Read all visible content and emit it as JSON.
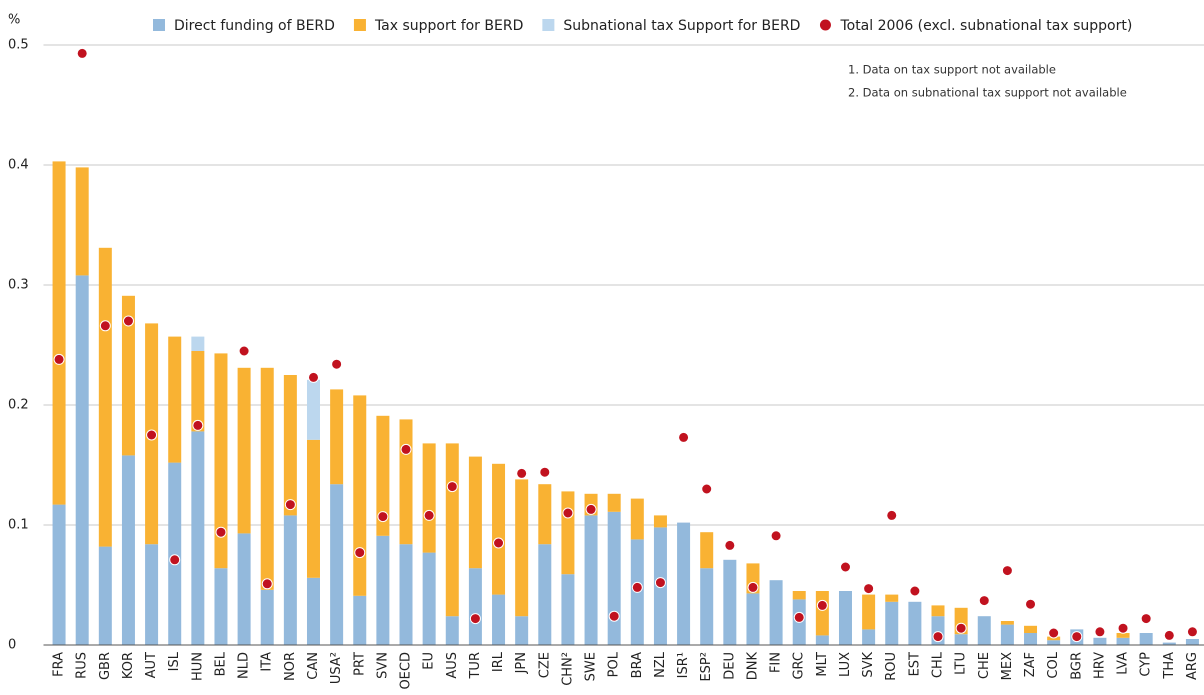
{
  "chart_data": {
    "type": "bar",
    "stacked": true,
    "grid": true,
    "y_label": "%",
    "notes": [
      "1. Data on tax support not available",
      "2. Data on subnational tax support not available"
    ],
    "categories": [
      "FRA",
      "RUS",
      "GBR",
      "KOR",
      "AUT",
      "ISL",
      "HUN",
      "BEL",
      "NLD",
      "ITA",
      "NOR",
      "CAN",
      "USA²",
      "PRT",
      "SVN",
      "OECD",
      "EU",
      "AUS",
      "TUR",
      "IRL",
      "JPN",
      "CZE",
      "CHN²",
      "SWE",
      "POL",
      "BRA",
      "NZL",
      "ISR¹",
      "ESP²",
      "DEU",
      "DNK",
      "FIN",
      "GRC",
      "MLT",
      "LUX",
      "SVK",
      "ROU",
      "EST",
      "CHL",
      "LTU",
      "CHE",
      "MEX",
      "ZAF",
      "COL",
      "BGR",
      "HRV",
      "LVA",
      "CYP",
      "THA",
      "ARG"
    ],
    "ylim": [
      0,
      0.5
    ],
    "yticks": [
      0,
      0.1,
      0.2,
      0.3,
      0.4,
      0.5
    ],
    "series": [
      {
        "name": "Direct funding of BERD",
        "color": "#93b9dc",
        "type": "bar",
        "values": [
          0.117,
          0.308,
          0.082,
          0.158,
          0.084,
          0.152,
          0.178,
          0.064,
          0.093,
          0.046,
          0.108,
          0.056,
          0.134,
          0.041,
          0.091,
          0.084,
          0.077,
          0.024,
          0.064,
          0.042,
          0.024,
          0.084,
          0.059,
          0.108,
          0.111,
          0.088,
          0.098,
          0.102,
          0.064,
          0.071,
          0.043,
          0.054,
          0.038,
          0.008,
          0.045,
          0.013,
          0.036,
          0.036,
          0.024,
          0.009,
          0.024,
          0.017,
          0.01,
          0.004,
          0.013,
          0.006,
          0.006,
          0.01,
          0.002,
          0.005
        ]
      },
      {
        "name": "Tax support for BERD",
        "color": "#f9b233",
        "type": "bar",
        "values": [
          0.286,
          0.09,
          0.249,
          0.133,
          0.184,
          0.105,
          0.067,
          0.179,
          0.138,
          0.185,
          0.117,
          0.115,
          0.079,
          0.167,
          0.1,
          0.104,
          0.091,
          0.144,
          0.093,
          0.109,
          0.114,
          0.05,
          0.069,
          0.018,
          0.015,
          0.034,
          0.01,
          null,
          0.03,
          null,
          0.025,
          null,
          0.007,
          0.037,
          null,
          0.029,
          0.006,
          null,
          0.009,
          0.022,
          null,
          0.003,
          0.006,
          0.003,
          null,
          null,
          0.004,
          null,
          null,
          null
        ]
      },
      {
        "name": "Subnational tax Support for BERD",
        "color": "#bcd7ee",
        "type": "bar",
        "values": [
          null,
          null,
          null,
          null,
          null,
          null,
          0.012,
          null,
          null,
          null,
          null,
          0.05,
          null,
          null,
          null,
          null,
          null,
          null,
          null,
          null,
          null,
          null,
          null,
          null,
          null,
          null,
          null,
          null,
          null,
          null,
          null,
          null,
          null,
          null,
          null,
          null,
          null,
          null,
          null,
          null,
          null,
          null,
          null,
          null,
          null,
          null,
          null,
          null,
          null,
          null
        ]
      },
      {
        "name": "Total 2006 (excl. subnational tax support)",
        "color": "#c1121f",
        "type": "scatter",
        "values": [
          0.238,
          0.493,
          0.266,
          0.27,
          0.175,
          0.071,
          0.183,
          0.094,
          0.245,
          0.051,
          0.117,
          0.223,
          0.234,
          0.077,
          0.107,
          0.163,
          0.108,
          0.132,
          0.022,
          0.085,
          0.143,
          0.144,
          0.11,
          0.113,
          0.024,
          0.048,
          0.052,
          0.173,
          0.13,
          0.083,
          0.048,
          0.091,
          0.023,
          0.033,
          0.065,
          0.047,
          0.108,
          0.045,
          0.007,
          0.014,
          0.037,
          0.062,
          0.034,
          0.01,
          0.007,
          0.011,
          0.014,
          0.022,
          0.008,
          0.011
        ]
      }
    ]
  }
}
